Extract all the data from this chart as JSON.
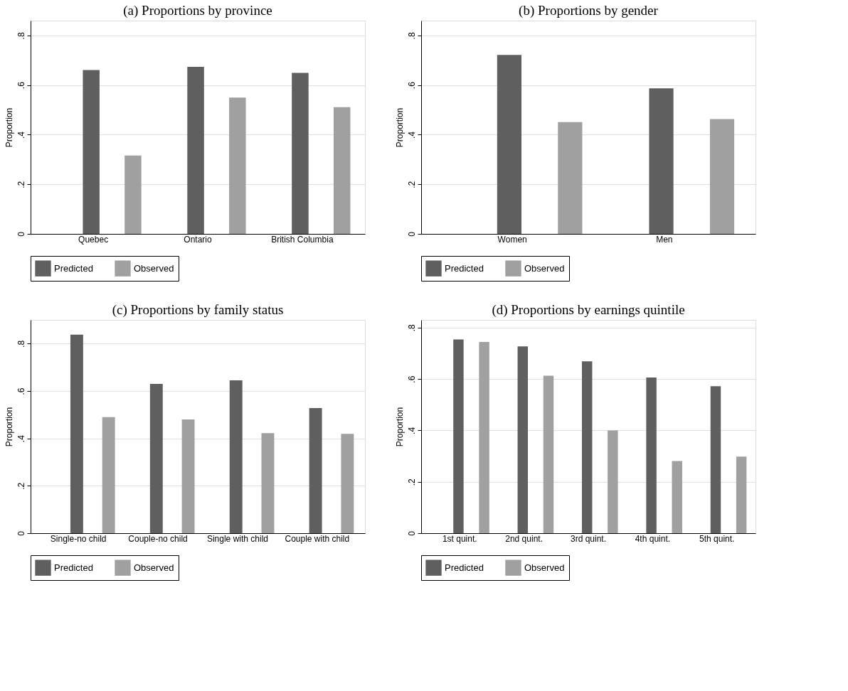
{
  "chart_data": [
    {
      "type": "bar",
      "title": "(a) Proportions by province",
      "ylabel": "Proportion",
      "categories": [
        "Quebec",
        "Ontario",
        "British Columbia"
      ],
      "series": [
        {
          "name": "Predicted",
          "color": "#5f5f5f",
          "values": [
            0.661,
            0.674,
            0.649
          ]
        },
        {
          "name": "Observed",
          "color": "#a0a0a0",
          "values": [
            0.316,
            0.55,
            0.511
          ]
        }
      ],
      "ylim": [
        0,
        0.86
      ],
      "yticks": [
        0,
        {
          "value": 0.2,
          "label": ".2"
        },
        {
          "value": 0.4,
          "label": ".4"
        },
        {
          "value": 0.6,
          "label": ".6"
        },
        {
          "value": 0.8,
          "label": ".8"
        }
      ],
      "grid": "y",
      "legend": "bottom"
    },
    {
      "type": "bar",
      "title": "(b) Proportions by gender",
      "ylabel": "Proportion",
      "categories": [
        "Women",
        "Men"
      ],
      "series": [
        {
          "name": "Predicted",
          "color": "#5f5f5f",
          "values": [
            0.722,
            0.587
          ]
        },
        {
          "name": "Observed",
          "color": "#a0a0a0",
          "values": [
            0.451,
            0.463
          ]
        }
      ],
      "ylim": [
        0,
        0.86
      ],
      "yticks": [
        0,
        {
          "value": 0.2,
          "label": ".2"
        },
        {
          "value": 0.4,
          "label": ".4"
        },
        {
          "value": 0.6,
          "label": ".6"
        },
        {
          "value": 0.8,
          "label": ".8"
        }
      ],
      "grid": "y",
      "legend": "bottom"
    },
    {
      "type": "bar",
      "title": "(c) Proportions by family status",
      "ylabel": "Proportion",
      "categories": [
        "Single-no child",
        "Couple-no child",
        "Single with child",
        "Couple with child"
      ],
      "series": [
        {
          "name": "Predicted",
          "color": "#5f5f5f",
          "values": [
            0.838,
            0.63,
            0.645,
            0.528
          ]
        },
        {
          "name": "Observed",
          "color": "#a0a0a0",
          "values": [
            0.49,
            0.48,
            0.422,
            0.419
          ]
        }
      ],
      "ylim": [
        0,
        0.9
      ],
      "yticks": [
        0,
        {
          "value": 0.2,
          "label": ".2"
        },
        {
          "value": 0.4,
          "label": ".4"
        },
        {
          "value": 0.6,
          "label": ".6"
        },
        {
          "value": 0.8,
          "label": ".8"
        }
      ],
      "grid": "y",
      "legend": "bottom"
    },
    {
      "type": "bar",
      "title": "(d) Proportions by earnings quintile",
      "ylabel": "Proportion",
      "categories": [
        "1st quint.",
        "2nd quint.",
        "3rd quint.",
        "4th quint.",
        "5th quint."
      ],
      "series": [
        {
          "name": "Predicted",
          "color": "#5f5f5f",
          "values": [
            0.754,
            0.727,
            0.669,
            0.606,
            0.572
          ]
        },
        {
          "name": "Observed",
          "color": "#a0a0a0",
          "values": [
            0.744,
            0.613,
            0.4,
            0.281,
            0.298
          ]
        }
      ],
      "ylim": [
        0,
        0.83
      ],
      "yticks": [
        0,
        {
          "value": 0.2,
          "label": ".2"
        },
        {
          "value": 0.4,
          "label": ".4"
        },
        {
          "value": 0.6,
          "label": ".6"
        },
        {
          "value": 0.8,
          "label": ".8"
        }
      ],
      "grid": "y",
      "legend": "bottom"
    }
  ]
}
